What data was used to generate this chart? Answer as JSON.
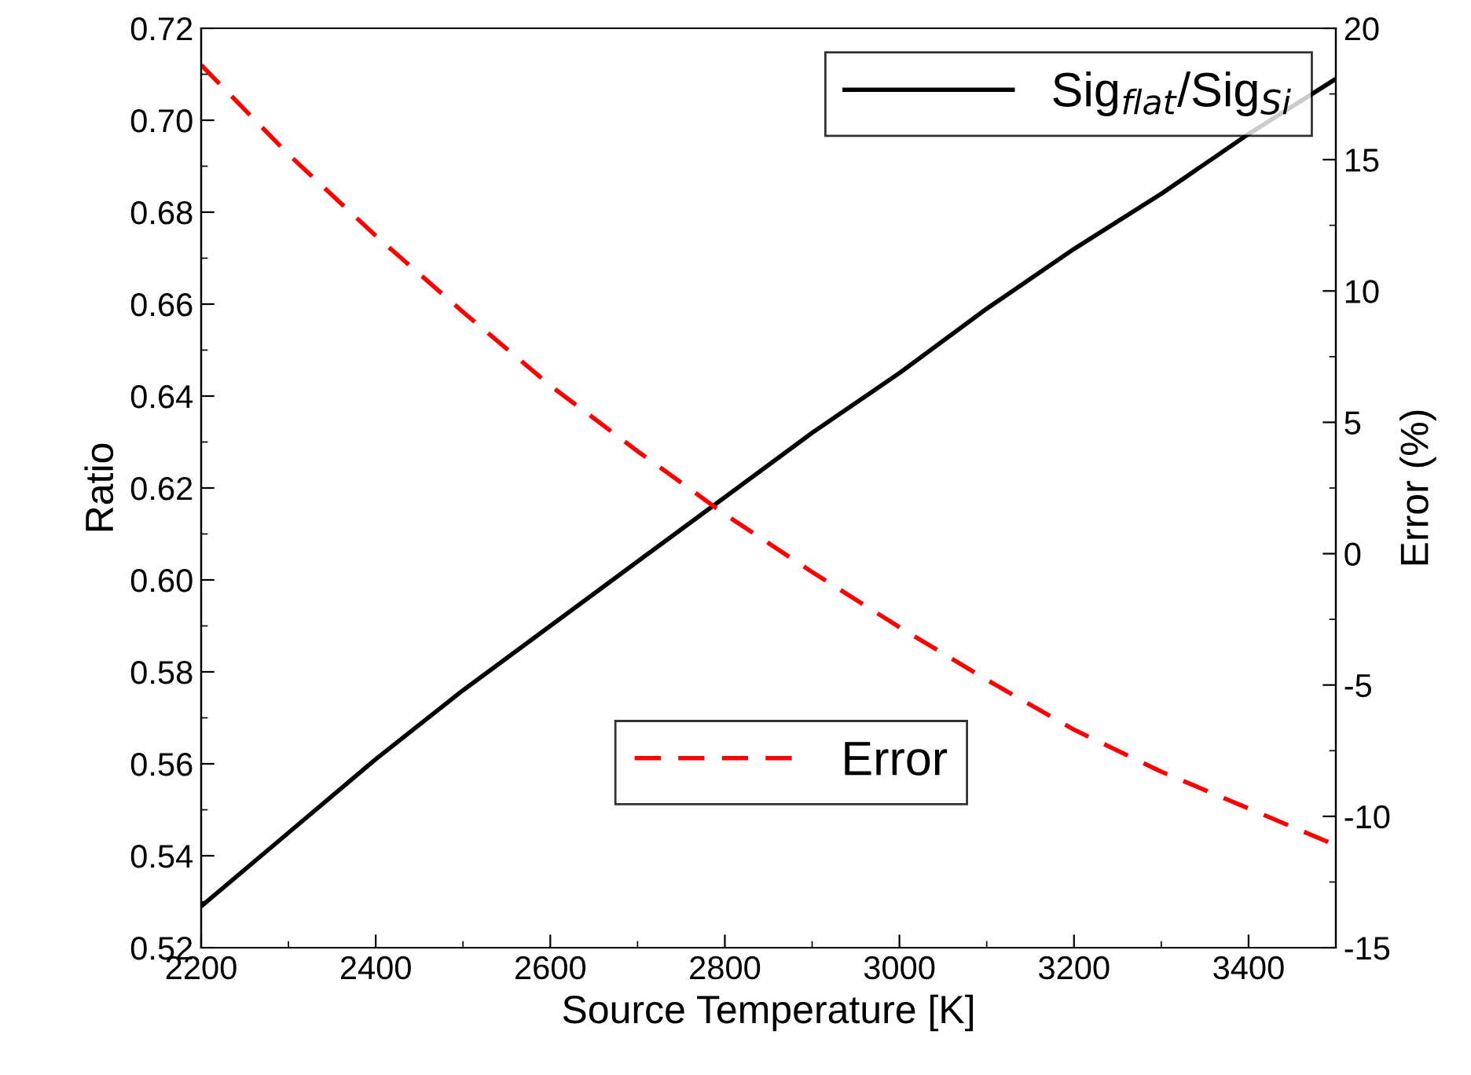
{
  "chart_data": {
    "type": "line",
    "xlabel": "Source Temperature [K]",
    "ylabel": "Ratio",
    "y2label": "Error (%)",
    "x": [
      2200,
      2300,
      2400,
      2500,
      2600,
      2700,
      2800,
      2900,
      3000,
      3100,
      3200,
      3300,
      3400,
      3500
    ],
    "series": [
      {
        "name": "Sig$_{flat}$/Sig$_{Si}$",
        "color": "#000000",
        "line_style": "solid",
        "values": [
          0.529,
          0.545,
          0.561,
          0.576,
          0.59,
          0.604,
          0.618,
          0.632,
          0.645,
          0.659,
          0.672,
          0.684,
          0.697,
          0.709
        ]
      },
      {
        "name": "Error",
        "color": "#ff0000",
        "line_style": "dashed",
        "axis": "y2",
        "values": [
          18.6,
          15.2,
          12.1,
          9.2,
          6.4,
          3.9,
          1.5,
          -0.7,
          -2.8,
          -4.8,
          -6.7,
          -8.3,
          -9.7,
          -11.1
        ]
      }
    ],
    "xlim": [
      2200,
      3500
    ],
    "xticks": [
      2200,
      2400,
      2600,
      2800,
      3000,
      3200,
      3400
    ],
    "ylim": [
      0.52,
      0.72
    ],
    "yticks": [
      {
        "value": 0.52,
        "label": "0.52"
      },
      {
        "value": 0.54,
        "label": "0.54"
      },
      {
        "value": 0.56,
        "label": "0.56"
      },
      {
        "value": 0.58,
        "label": "0.58"
      },
      {
        "value": 0.6,
        "label": "0.60"
      },
      {
        "value": 0.62,
        "label": "0.62"
      },
      {
        "value": 0.64,
        "label": "0.64"
      },
      {
        "value": 0.66,
        "label": "0.66"
      },
      {
        "value": 0.68,
        "label": "0.68"
      },
      {
        "value": 0.7,
        "label": "0.70"
      },
      {
        "value": 0.72,
        "label": "0.72"
      }
    ],
    "y2lim": [
      -15,
      20
    ],
    "y2ticks": [
      -15,
      -10,
      -5,
      0,
      5,
      10,
      15,
      20
    ],
    "legend": "top right",
    "grid": false
  }
}
